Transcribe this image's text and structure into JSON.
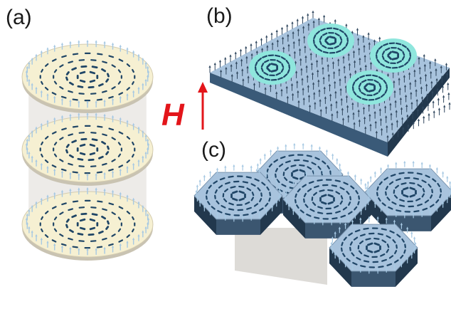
{
  "labels": {
    "a": "(a)",
    "b": "(b)",
    "c": "(c)"
  },
  "field": {
    "symbol": "H",
    "arrow_icon": "up-arrow-icon"
  },
  "colors": {
    "disk_top": "#f6f0d2",
    "cylinder_body": "#dedad5",
    "film_top": "#a8c3dd",
    "film_side": "#22384d",
    "skyrmion": "#8fe6dd",
    "spin_dark": "#1f4566",
    "spin_light": "#a7c9e3",
    "field": "#e3151a"
  }
}
